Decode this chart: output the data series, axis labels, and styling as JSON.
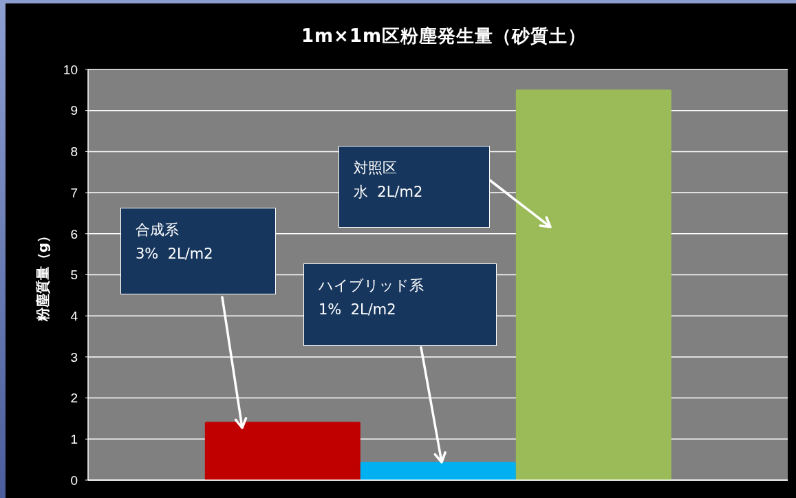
{
  "chart_data": {
    "type": "bar",
    "title": "1m×1m区粉塵発生量（砂質土）",
    "ylabel": "粉塵質量（g）",
    "categories": [
      null
    ],
    "series": [
      {
        "color": "#c00000",
        "values": [
          1.42
        ]
      },
      {
        "color": "#00b0f0",
        "values": [
          0.44
        ]
      },
      {
        "color": "#9bbb59",
        "values": [
          9.51
        ]
      }
    ],
    "ylim": [
      0,
      10
    ],
    "yticks": [
      0,
      1,
      2,
      3,
      4,
      5,
      6,
      7,
      8,
      9,
      10
    ],
    "grid": "y",
    "annotations": [
      "合成系",
      "3%  2L/m2",
      "ハイブリッド系",
      "1%  2L/m2",
      "対照区",
      "水  2L/m2"
    ]
  }
}
